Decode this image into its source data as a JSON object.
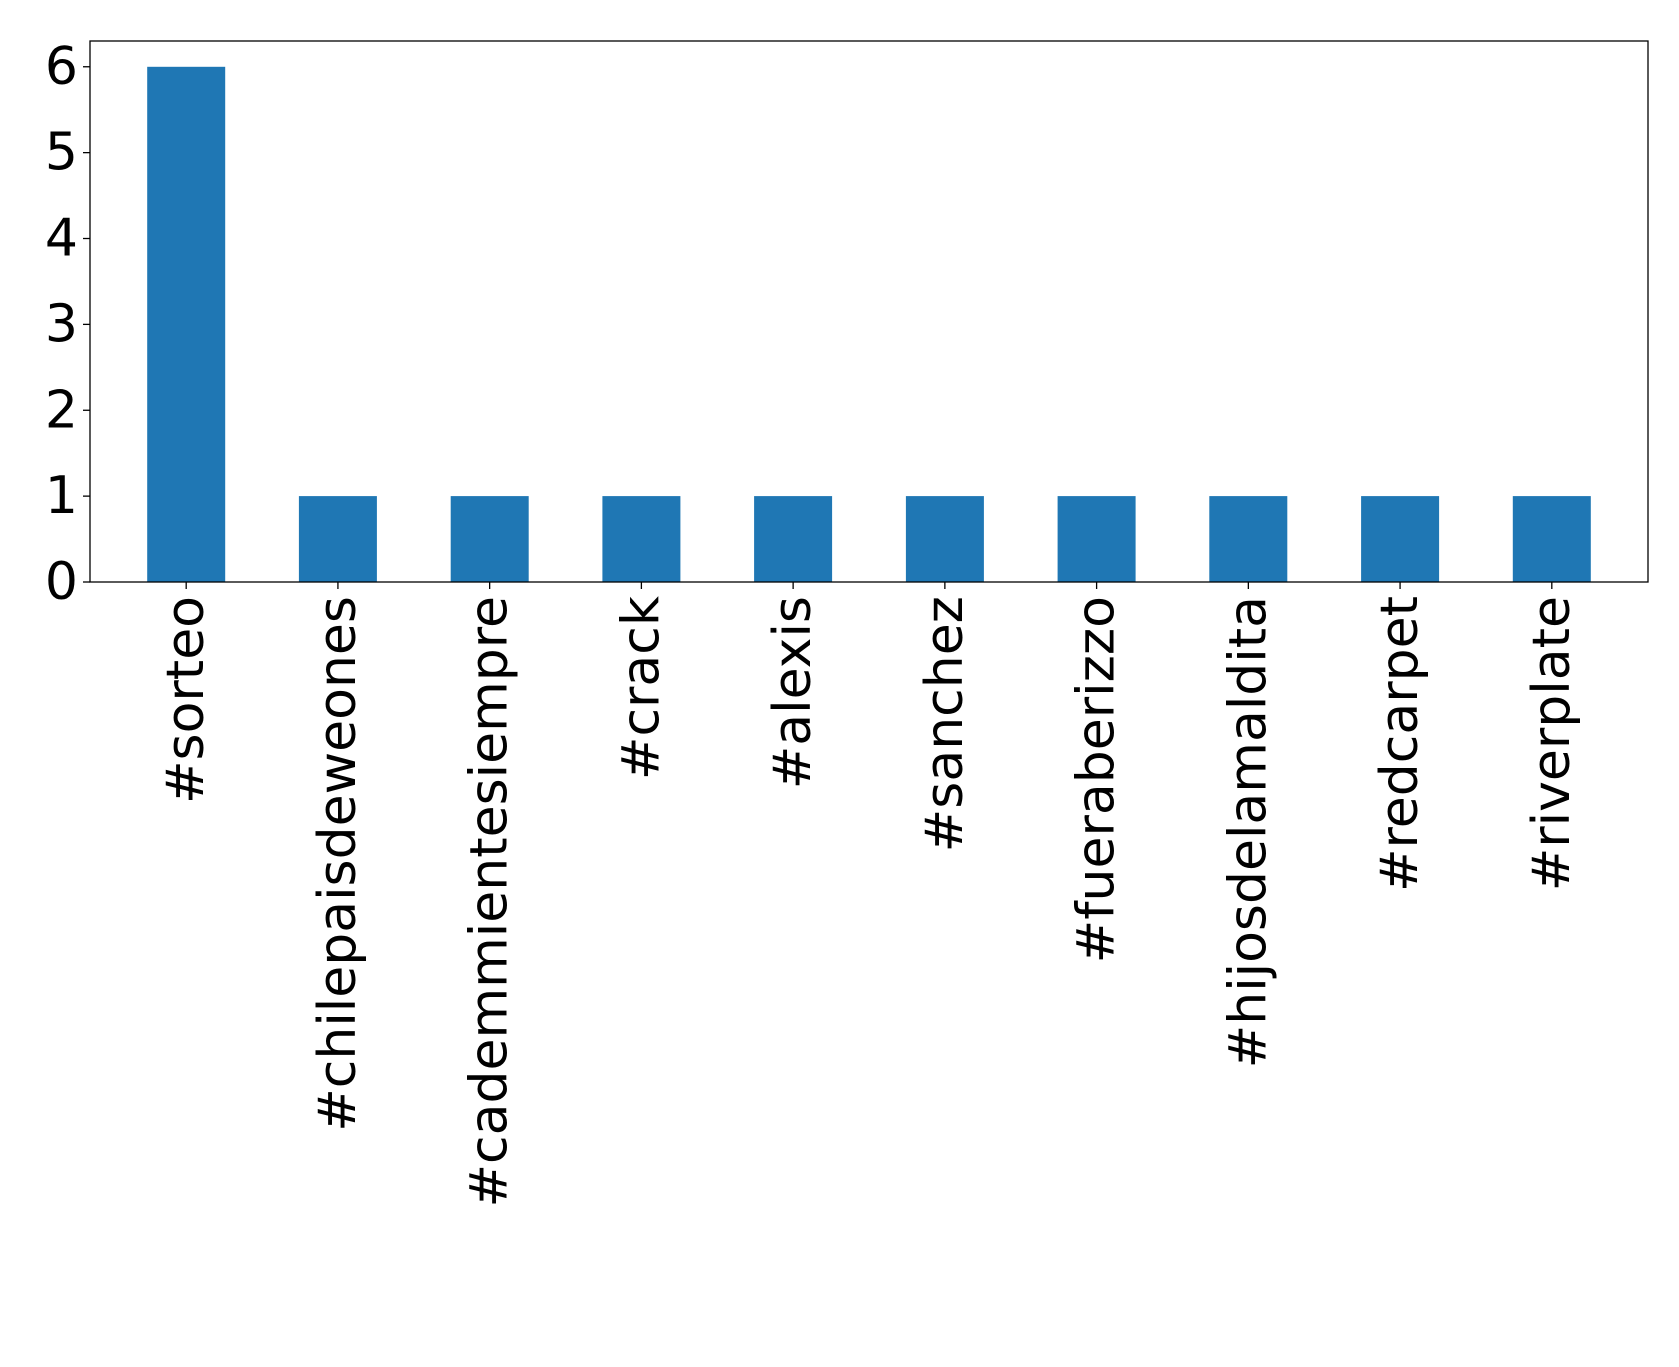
{
  "chart_data": {
    "type": "bar",
    "categories": [
      "#sorteo",
      "#chilepaisdeweones",
      "#cademmientesiempre",
      "#crack",
      "#alexis",
      "#sanchez",
      "#fueraberizzo",
      "#hijosdelamaldita",
      "#redcarpet",
      "#riverplate"
    ],
    "values": [
      6,
      1,
      1,
      1,
      1,
      1,
      1,
      1,
      1,
      1
    ],
    "title": "",
    "xlabel": "",
    "ylabel": "",
    "ylim": [
      0,
      6.3
    ],
    "yticks": [
      "0",
      "1",
      "2",
      "3",
      "4",
      "5",
      "6"
    ],
    "grid": false,
    "legend": "none",
    "colors": {
      "bar": "#1f77b4",
      "axis": "#000000",
      "background": "#ffffff"
    }
  }
}
